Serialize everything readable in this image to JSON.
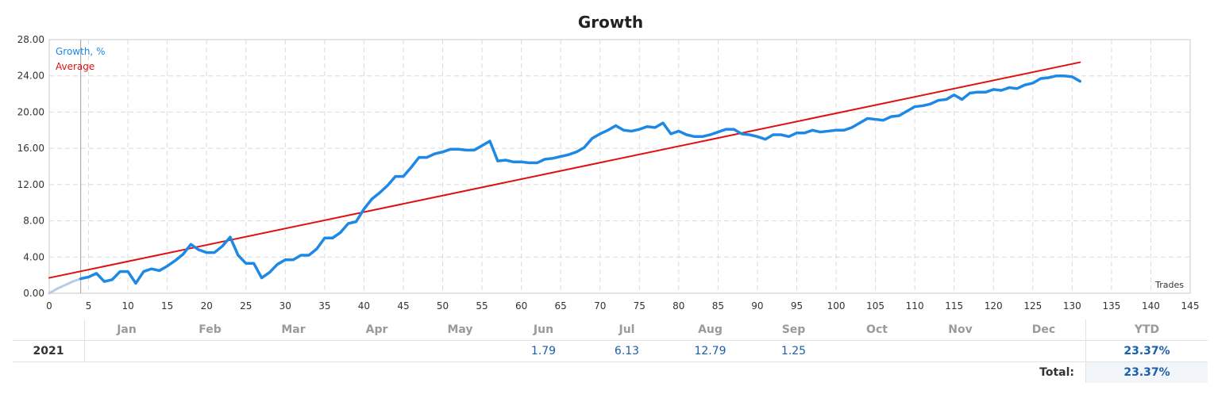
{
  "chart_data": {
    "type": "line",
    "title": "Growth",
    "xlabel": "Trades",
    "ylabel": "",
    "xlim": [
      0,
      145
    ],
    "ylim": [
      0,
      28
    ],
    "x_ticks": [
      "0",
      "5",
      "10",
      "15",
      "20",
      "25",
      "30",
      "35",
      "40",
      "45",
      "50",
      "55",
      "60",
      "65",
      "70",
      "75",
      "80",
      "85",
      "90",
      "95",
      "100",
      "105",
      "110",
      "115",
      "120",
      "125",
      "130",
      "135",
      "140",
      "145"
    ],
    "y_ticks": [
      "0.00",
      "4.00",
      "8.00",
      "12.00",
      "16.00",
      "20.00",
      "24.00",
      "28.00"
    ],
    "grid": true,
    "legend_position": "top-left",
    "series": [
      {
        "name": "Growth, %",
        "color": "#1e88e5",
        "pre_segment": {
          "color": "#b7cce6",
          "x": [
            0,
            1,
            2,
            3,
            4
          ],
          "y": [
            0,
            0.5,
            0.9,
            1.3,
            1.6
          ]
        },
        "x": [
          4,
          5,
          6,
          7,
          8,
          9,
          10,
          11,
          12,
          13,
          14,
          15,
          16,
          17,
          18,
          19,
          20,
          21,
          22,
          23,
          24,
          25,
          26,
          27,
          28,
          29,
          30,
          31,
          32,
          33,
          34,
          35,
          36,
          37,
          38,
          39,
          40,
          41,
          42,
          43,
          44,
          45,
          46,
          47,
          48,
          49,
          50,
          51,
          52,
          53,
          54,
          55,
          56,
          57,
          58,
          59,
          60,
          61,
          62,
          63,
          64,
          65,
          66,
          67,
          68,
          69,
          70,
          71,
          72,
          73,
          74,
          75,
          76,
          77,
          78,
          79,
          80,
          81,
          82,
          83,
          84,
          85,
          86,
          87,
          88,
          89,
          90,
          91,
          92,
          93,
          94,
          95,
          96,
          97,
          98,
          99,
          100,
          101,
          102,
          103,
          104,
          105,
          106,
          107,
          108,
          109,
          110,
          111,
          112,
          113,
          114,
          115,
          116,
          117,
          118,
          119,
          120,
          121,
          122,
          123,
          124,
          125,
          126,
          127,
          128,
          129,
          130,
          131
        ],
        "y": [
          1.6,
          1.8,
          2.2,
          1.3,
          1.5,
          2.4,
          2.4,
          1.1,
          2.4,
          2.7,
          2.5,
          3.0,
          3.6,
          4.3,
          5.4,
          4.8,
          4.5,
          4.5,
          5.2,
          6.2,
          4.2,
          3.3,
          3.3,
          1.7,
          2.3,
          3.2,
          3.7,
          3.7,
          4.2,
          4.2,
          4.9,
          6.1,
          6.1,
          6.7,
          7.7,
          7.9,
          9.3,
          10.4,
          11.1,
          11.9,
          12.9,
          12.9,
          13.9,
          15.0,
          15.0,
          15.4,
          15.6,
          15.9,
          15.9,
          15.8,
          15.8,
          16.3,
          16.8,
          14.6,
          14.7,
          14.5,
          14.5,
          14.4,
          14.4,
          14.8,
          14.9,
          15.1,
          15.3,
          15.6,
          16.1,
          17.1,
          17.6,
          18.0,
          18.5,
          18.0,
          17.9,
          18.1,
          18.4,
          18.3,
          18.8,
          17.6,
          17.9,
          17.5,
          17.3,
          17.3,
          17.5,
          17.8,
          18.1,
          18.1,
          17.6,
          17.5,
          17.3,
          17.0,
          17.5,
          17.5,
          17.3,
          17.7,
          17.7,
          18.0,
          17.8,
          17.9,
          18.0,
          18.0,
          18.3,
          18.8,
          19.3,
          19.2,
          19.1,
          19.5,
          19.6,
          20.1,
          20.6,
          20.7,
          20.9,
          21.3,
          21.4,
          21.9,
          21.4,
          22.1,
          22.2,
          22.2,
          22.5,
          22.4,
          22.7,
          22.6,
          23.0,
          23.2,
          23.7,
          23.8,
          24.0,
          24.0,
          23.9,
          23.4
        ]
      },
      {
        "name": "Average",
        "color": "#e01010",
        "x": [
          0,
          131
        ],
        "y": [
          1.7,
          25.5
        ]
      }
    ]
  },
  "table": {
    "months": [
      "Jan",
      "Feb",
      "Mar",
      "Apr",
      "May",
      "Jun",
      "Jul",
      "Aug",
      "Sep",
      "Oct",
      "Nov",
      "Dec"
    ],
    "ytd_header": "YTD",
    "rows": [
      {
        "year": "2021",
        "values": [
          "",
          "",
          "",
          "",
          "",
          "1.79",
          "6.13",
          "12.79",
          "1.25",
          "",
          "",
          ""
        ],
        "ytd": "23.37%"
      }
    ],
    "total_label": "Total:",
    "total_value": "23.37%"
  }
}
